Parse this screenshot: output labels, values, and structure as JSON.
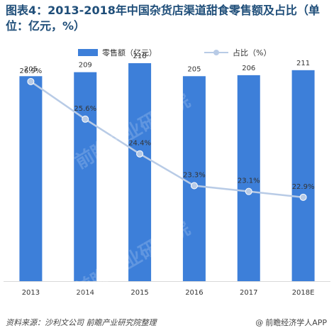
{
  "title": "图表4：2013-2018年中国杂货店渠道甜食零售额及占比（单位：亿元，%）",
  "source": "资料来源：沙利文公司 前瞻产业研究院整理",
  "brand": {
    "symbol": "@",
    "text": "前瞻经济学人APP"
  },
  "colors": {
    "bar": "#3d7fd9",
    "line": "#b8cbe6",
    "marker": "#b8cbe6",
    "marker_stroke": "#ffffff",
    "title": "#1f4e79"
  },
  "chart_data": {
    "type": "bar",
    "categories": [
      "2013",
      "2014",
      "2015",
      "2016",
      "2017",
      "2018E"
    ],
    "series": [
      {
        "name": "零售额（亿元）",
        "type": "bar",
        "values": [
          205,
          209,
          218,
          205,
          206,
          211
        ],
        "labels": [
          "205",
          "209",
          "218",
          "205",
          "206",
          "211"
        ]
      },
      {
        "name": "占比（%）",
        "type": "line",
        "values": [
          26.9,
          25.6,
          24.4,
          23.3,
          23.1,
          22.9
        ],
        "labels": [
          "26.9%",
          "25.6%",
          "24.4%",
          "23.3%",
          "23.1%",
          "22.9%"
        ]
      }
    ],
    "bar_ylim": [
      0,
      240
    ],
    "line_ylim": [
      20,
      28
    ],
    "legend_position": "top-center",
    "grid": false
  }
}
